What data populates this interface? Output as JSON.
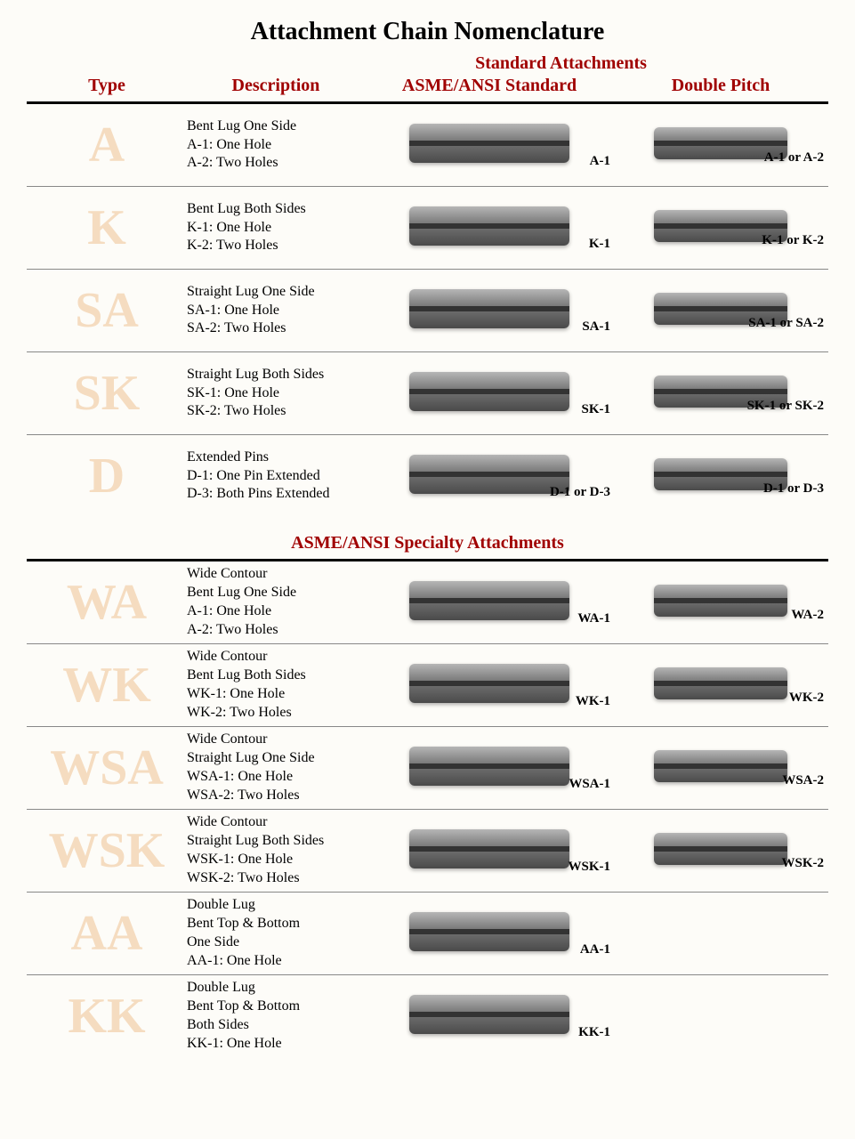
{
  "title": "Attachment Chain Nomenclature",
  "colors": {
    "header_text": "#a00000",
    "type_letter": "#f5dcc0",
    "body_text": "#000000",
    "background": "#fdfcf8",
    "rule": "#000000",
    "thin_rule": "#888888"
  },
  "typography": {
    "family": "Times New Roman",
    "title_size_pt": 28,
    "header_size_pt": 20,
    "type_letter_size_pt": 56,
    "desc_size_pt": 16,
    "caption_size_pt": 15
  },
  "section1": {
    "super_header": "Standard Attachments",
    "headers": {
      "type": "Type",
      "description": "Description",
      "std": "ASME/ANSI Standard",
      "dbl": "Double Pitch"
    },
    "rows": [
      {
        "type": "A",
        "desc_lines": [
          "Bent Lug One Side",
          "A-1: One Hole",
          "A-2: Two Holes"
        ],
        "std_caption": "A-1",
        "dbl_caption": "A-1 or A-2"
      },
      {
        "type": "K",
        "desc_lines": [
          "Bent Lug Both Sides",
          "K-1: One Hole",
          "K-2: Two Holes"
        ],
        "std_caption": "K-1",
        "dbl_caption": "K-1 or K-2"
      },
      {
        "type": "SA",
        "desc_lines": [
          "Straight Lug One Side",
          "SA-1: One Hole",
          "SA-2: Two Holes"
        ],
        "std_caption": "SA-1",
        "dbl_caption": "SA-1 or SA-2"
      },
      {
        "type": "SK",
        "desc_lines": [
          "Straight Lug Both Sides",
          "SK-1: One Hole",
          "SK-2: Two Holes"
        ],
        "std_caption": "SK-1",
        "dbl_caption": "SK-1 or SK-2"
      },
      {
        "type": "D",
        "desc_lines": [
          "Extended Pins",
          "D-1: One Pin Extended",
          "D-3: Both Pins Extended"
        ],
        "std_caption": "D-1 or D-3",
        "dbl_caption": "D-1 or D-3"
      }
    ]
  },
  "section2": {
    "title": "ASME/ANSI Specialty Attachments",
    "rows": [
      {
        "type": "WA",
        "desc_lines": [
          "Wide Contour",
          "Bent Lug One Side",
          "A-1: One Hole",
          "A-2: Two Holes"
        ],
        "std_caption": "WA-1",
        "dbl_caption": "WA-2"
      },
      {
        "type": "WK",
        "desc_lines": [
          "Wide Contour",
          "Bent Lug Both Sides",
          "WK-1: One Hole",
          "WK-2: Two Holes"
        ],
        "std_caption": "WK-1",
        "dbl_caption": "WK-2"
      },
      {
        "type": "WSA",
        "desc_lines": [
          "Wide Contour",
          "Straight Lug One Side",
          "WSA-1: One Hole",
          "WSA-2: Two Holes"
        ],
        "std_caption": "WSA-1",
        "dbl_caption": "WSA-2"
      },
      {
        "type": "WSK",
        "desc_lines": [
          "Wide Contour",
          "Straight Lug Both Sides",
          "WSK-1: One Hole",
          "WSK-2: Two Holes"
        ],
        "std_caption": "WSK-1",
        "dbl_caption": "WSK-2"
      },
      {
        "type": "AA",
        "desc_lines": [
          "Double Lug",
          "Bent Top & Bottom",
          "One Side",
          "AA-1: One Hole"
        ],
        "std_caption": "AA-1",
        "dbl_caption": ""
      },
      {
        "type": "KK",
        "desc_lines": [
          "Double Lug",
          "Bent Top & Bottom",
          "Both Sides",
          "KK-1: One Hole"
        ],
        "std_caption": "KK-1",
        "dbl_caption": ""
      }
    ]
  }
}
